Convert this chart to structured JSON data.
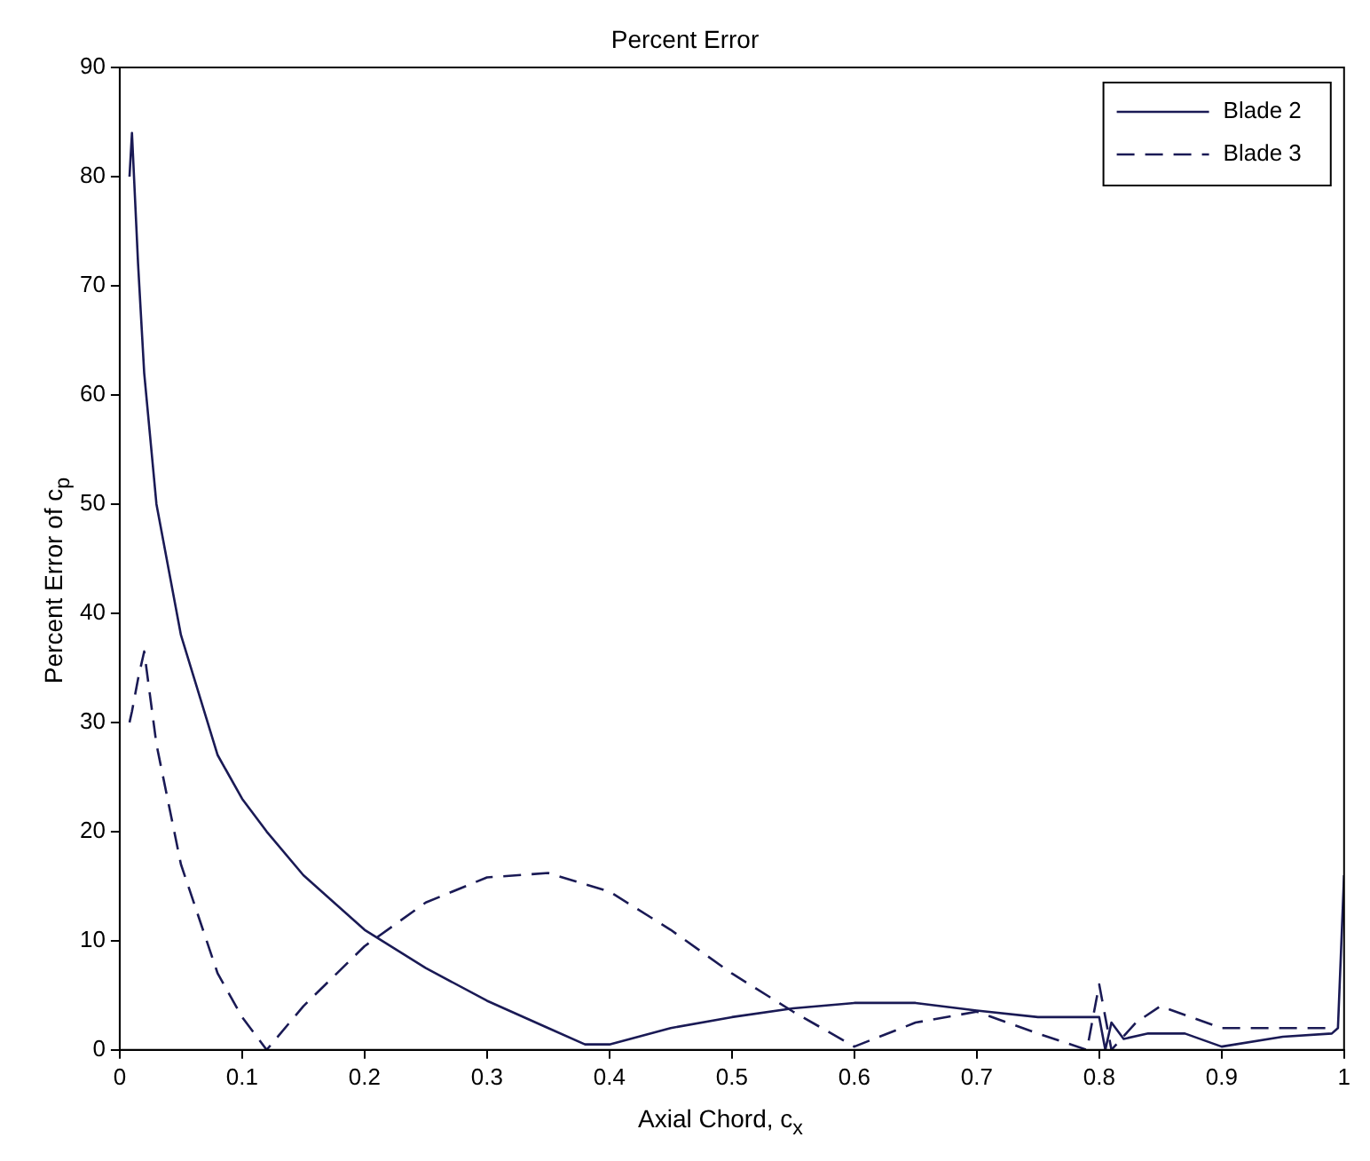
{
  "chart_data": {
    "type": "line",
    "title": "Percent Error",
    "xlabel": "Axial Chord, c$_{x}$",
    "ylabel": "Percent Error of c$_{p}$",
    "xlim": [
      0,
      1
    ],
    "xticks": [
      0,
      0.1,
      0.2,
      0.3,
      0.4,
      0.5,
      0.6,
      0.7,
      0.8,
      0.9,
      1
    ],
    "ylim": [
      0,
      90
    ],
    "yticks": [
      0,
      10,
      20,
      30,
      40,
      50,
      60,
      70,
      80,
      90
    ],
    "grid": false,
    "legend": "top right",
    "marker": "none",
    "series": [
      {
        "name": "Blade 2",
        "color": "#1a1a55",
        "line_style": "solid",
        "x": [
          0.008,
          0.01,
          0.015,
          0.02,
          0.03,
          0.05,
          0.08,
          0.1,
          0.12,
          0.15,
          0.2,
          0.25,
          0.3,
          0.35,
          0.38,
          0.4,
          0.45,
          0.5,
          0.55,
          0.6,
          0.65,
          0.7,
          0.75,
          0.8,
          0.805,
          0.81,
          0.82,
          0.84,
          0.87,
          0.9,
          0.95,
          0.99,
          0.995,
          1.0
        ],
        "values": [
          80,
          84,
          72,
          62,
          50,
          38,
          27,
          23,
          20,
          16,
          11,
          7.5,
          4.5,
          2,
          0.5,
          0.5,
          2,
          3,
          3.8,
          4.3,
          4.3,
          3.6,
          3,
          3,
          0,
          2.5,
          1,
          1.5,
          1.5,
          0.3,
          1.2,
          1.5,
          2,
          16
        ]
      },
      {
        "name": "Blade 3",
        "color": "#1a1a55",
        "line_style": "dashed",
        "x": [
          0.008,
          0.01,
          0.015,
          0.02,
          0.03,
          0.05,
          0.08,
          0.1,
          0.12,
          0.15,
          0.2,
          0.25,
          0.3,
          0.35,
          0.4,
          0.45,
          0.5,
          0.55,
          0.6,
          0.65,
          0.7,
          0.75,
          0.79,
          0.8,
          0.81,
          0.83,
          0.85,
          0.9,
          0.95,
          0.99
        ],
        "values": [
          30,
          31,
          34,
          36.5,
          28,
          17,
          7,
          3,
          0,
          4,
          9.5,
          13.5,
          15.8,
          16.2,
          14.5,
          11,
          7,
          3.5,
          0.3,
          2.5,
          3.5,
          1.5,
          0,
          6,
          0,
          2.5,
          4,
          2,
          2,
          2
        ]
      }
    ]
  }
}
